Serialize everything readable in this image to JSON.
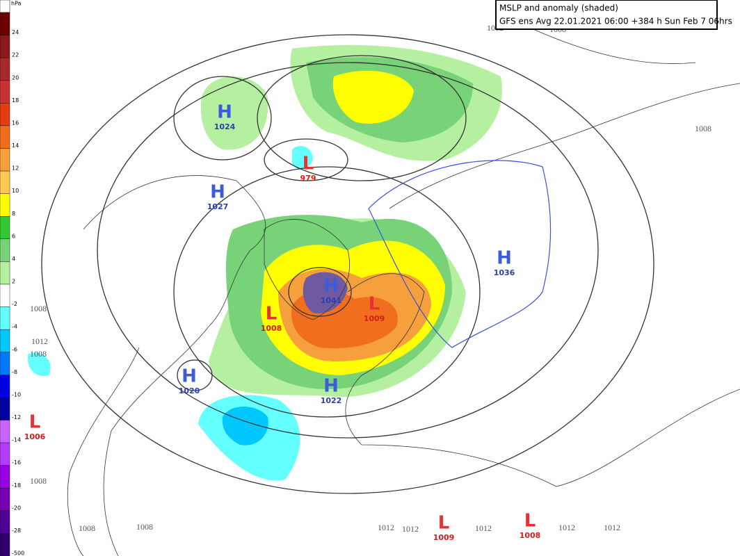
{
  "header": {
    "title": "MSLP and anomaly (shaded)",
    "subtitle": "GFS ens Avg 22.01.2021 06:00 +384 h Sun Feb 7 06hrs"
  },
  "colorbar": {
    "unit": "hPa",
    "levels": [
      {
        "label": "24",
        "color": "#6e0000"
      },
      {
        "label": "22",
        "color": "#8b1a1a"
      },
      {
        "label": "20",
        "color": "#a52a2a"
      },
      {
        "label": "18",
        "color": "#c83232"
      },
      {
        "label": "16",
        "color": "#e63c14"
      },
      {
        "label": "14",
        "color": "#f06e1e"
      },
      {
        "label": "12",
        "color": "#f5a03c"
      },
      {
        "label": "10",
        "color": "#ffc850"
      },
      {
        "label": "8",
        "color": "#ffff00"
      },
      {
        "label": "6",
        "color": "#32c832"
      },
      {
        "label": "4",
        "color": "#78d278"
      },
      {
        "label": "2",
        "color": "#b4f0a0"
      },
      {
        "label": "-2",
        "color": "#ffffff"
      },
      {
        "label": "-4",
        "color": "#64ffff"
      },
      {
        "label": "-6",
        "color": "#00c8ff"
      },
      {
        "label": "-8",
        "color": "#0078ff"
      },
      {
        "label": "-10",
        "color": "#0000e6"
      },
      {
        "label": "-12",
        "color": "#0000a0"
      },
      {
        "label": "-14",
        "color": "#c864ff"
      },
      {
        "label": "-16",
        "color": "#b43cff"
      },
      {
        "label": "-18",
        "color": "#9600e6"
      },
      {
        "label": "-20",
        "color": "#7800b4"
      },
      {
        "label": "-28",
        "color": "#500096"
      },
      {
        "label": "-500",
        "color": "#32006e"
      }
    ]
  },
  "centers": [
    {
      "letter": "H",
      "value": "1024"
    },
    {
      "letter": "H",
      "value": "1027"
    },
    {
      "letter": "L",
      "value": "979"
    },
    {
      "letter": "L",
      "value": "1008"
    },
    {
      "letter": "H",
      "value": "1041"
    },
    {
      "letter": "L",
      "value": "1009"
    },
    {
      "letter": "H",
      "value": "1036"
    },
    {
      "letter": "H",
      "value": "1020"
    },
    {
      "letter": "H",
      "value": "1022"
    },
    {
      "letter": "L",
      "value": "1006"
    },
    {
      "letter": "L",
      "value": "1009"
    },
    {
      "letter": "L",
      "value": "1008"
    }
  ],
  "isobar_labels": [
    "1012",
    "1008",
    "1008",
    "1008",
    "1012",
    "1008",
    "1008",
    "1008",
    "1008",
    "1012",
    "1012",
    "1012",
    "1012",
    "1012"
  ]
}
